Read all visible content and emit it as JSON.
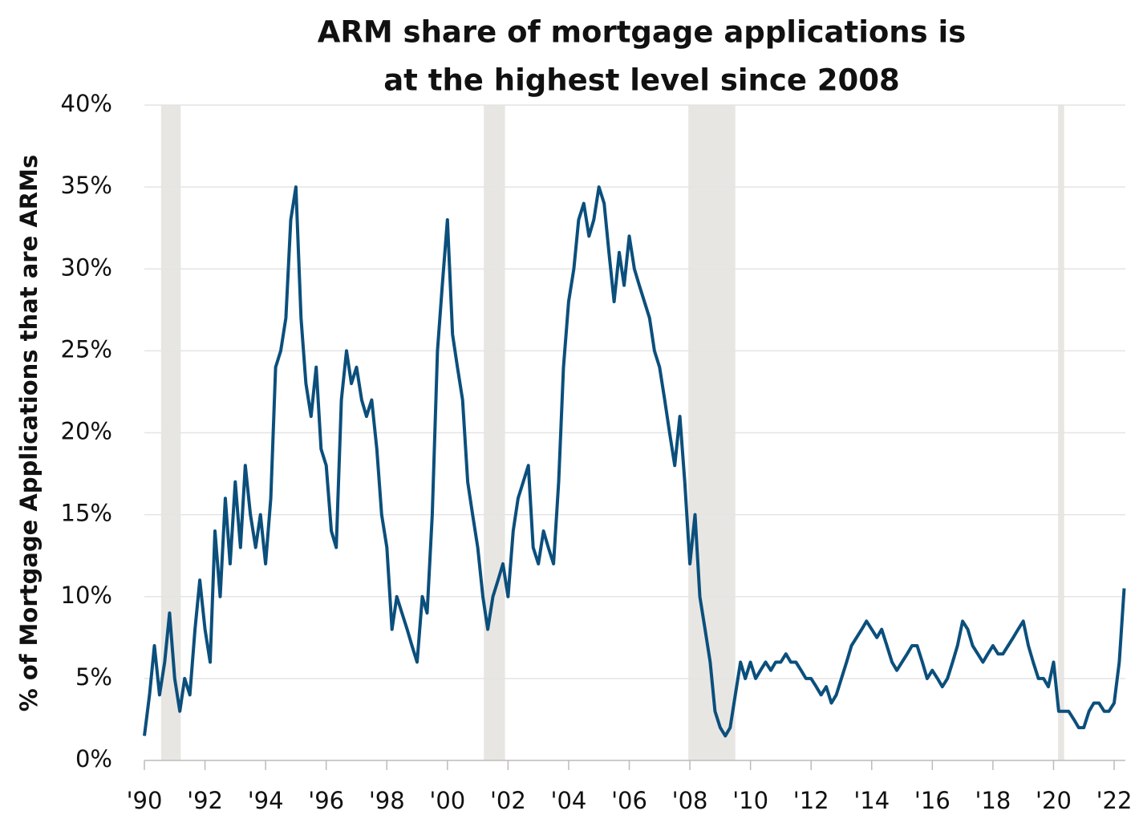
{
  "chart_data": {
    "type": "line",
    "title": [
      "ARM share of mortgage applications is",
      "at the highest level since 2008"
    ],
    "y_label": "% of Mortgage Applications that are ARMs",
    "xlim": [
      1990,
      2022.37
    ],
    "ylim": [
      0,
      40
    ],
    "xticks": [
      {
        "value": 1990,
        "label": "'90"
      },
      {
        "value": 1992,
        "label": "'92"
      },
      {
        "value": 1994,
        "label": "'94"
      },
      {
        "value": 1996,
        "label": "'96"
      },
      {
        "value": 1998,
        "label": "'98"
      },
      {
        "value": 2000,
        "label": "'00"
      },
      {
        "value": 2002,
        "label": "'02"
      },
      {
        "value": 2004,
        "label": "'04"
      },
      {
        "value": 2006,
        "label": "'06"
      },
      {
        "value": 2008,
        "label": "'08"
      },
      {
        "value": 2010,
        "label": "'10"
      },
      {
        "value": 2012,
        "label": "'12"
      },
      {
        "value": 2014,
        "label": "'14"
      },
      {
        "value": 2016,
        "label": "'16"
      },
      {
        "value": 2018,
        "label": "'18"
      },
      {
        "value": 2020,
        "label": "'20"
      },
      {
        "value": 2022,
        "label": "'22"
      }
    ],
    "yticks": [
      {
        "value": 0,
        "label": "0%"
      },
      {
        "value": 5,
        "label": "5%"
      },
      {
        "value": 10,
        "label": "10%"
      },
      {
        "value": 15,
        "label": "15%"
      },
      {
        "value": 20,
        "label": "20%"
      },
      {
        "value": 25,
        "label": "25%"
      },
      {
        "value": 30,
        "label": "30%"
      },
      {
        "value": 35,
        "label": "35%"
      },
      {
        "value": 40,
        "label": "40%"
      }
    ],
    "grid": true,
    "recessions": [
      [
        1990.55,
        1991.2
      ],
      [
        2001.2,
        2001.9
      ],
      [
        2007.95,
        2009.5
      ],
      [
        2020.15,
        2020.35
      ]
    ],
    "recession_color": "#e8e6e3",
    "series": [
      {
        "color": "#0b4f7c",
        "x": [
          1990,
          1990.17,
          1990.33,
          1990.5,
          1990.67,
          1990.83,
          1991,
          1991.17,
          1991.33,
          1991.5,
          1991.67,
          1991.83,
          1992,
          1992.17,
          1992.33,
          1992.5,
          1992.67,
          1992.83,
          1993,
          1993.17,
          1993.33,
          1993.5,
          1993.67,
          1993.83,
          1994,
          1994.17,
          1994.33,
          1994.5,
          1994.67,
          1994.83,
          1995,
          1995.17,
          1995.33,
          1995.5,
          1995.67,
          1995.83,
          1996,
          1996.17,
          1996.33,
          1996.5,
          1996.67,
          1996.83,
          1997,
          1997.17,
          1997.33,
          1997.5,
          1997.67,
          1997.83,
          1998,
          1998.17,
          1998.33,
          1998.5,
          1998.67,
          1998.83,
          1999,
          1999.17,
          1999.33,
          1999.5,
          1999.67,
          1999.83,
          2000,
          2000.17,
          2000.33,
          2000.5,
          2000.67,
          2000.83,
          2001,
          2001.17,
          2001.33,
          2001.5,
          2001.67,
          2001.83,
          2002,
          2002.17,
          2002.33,
          2002.5,
          2002.67,
          2002.83,
          2003,
          2003.17,
          2003.33,
          2003.5,
          2003.67,
          2003.83,
          2004,
          2004.17,
          2004.33,
          2004.5,
          2004.67,
          2004.83,
          2005,
          2005.17,
          2005.33,
          2005.5,
          2005.67,
          2005.83,
          2006,
          2006.17,
          2006.33,
          2006.5,
          2006.67,
          2006.83,
          2007,
          2007.17,
          2007.33,
          2007.5,
          2007.67,
          2007.83,
          2008,
          2008.17,
          2008.33,
          2008.5,
          2008.67,
          2008.83,
          2009,
          2009.17,
          2009.33,
          2009.5,
          2009.67,
          2009.83,
          2010,
          2010.17,
          2010.33,
          2010.5,
          2010.67,
          2010.83,
          2011,
          2011.17,
          2011.33,
          2011.5,
          2011.67,
          2011.83,
          2012,
          2012.17,
          2012.33,
          2012.5,
          2012.67,
          2012.83,
          2013,
          2013.17,
          2013.33,
          2013.5,
          2013.67,
          2013.83,
          2014,
          2014.17,
          2014.33,
          2014.5,
          2014.67,
          2014.83,
          2015,
          2015.17,
          2015.33,
          2015.5,
          2015.67,
          2015.83,
          2016,
          2016.17,
          2016.33,
          2016.5,
          2016.67,
          2016.83,
          2017,
          2017.17,
          2017.33,
          2017.5,
          2017.67,
          2017.83,
          2018,
          2018.17,
          2018.33,
          2018.5,
          2018.67,
          2018.83,
          2019,
          2019.17,
          2019.33,
          2019.5,
          2019.67,
          2019.83,
          2020,
          2020.17,
          2020.33,
          2020.5,
          2020.67,
          2020.83,
          2021,
          2021.17,
          2021.33,
          2021.5,
          2021.67,
          2021.83,
          2022,
          2022.17,
          2022.33
        ],
        "values": [
          1.5,
          4,
          7,
          4,
          6,
          9,
          5,
          3,
          5,
          4,
          8,
          11,
          8,
          6,
          14,
          10,
          16,
          12,
          17,
          13,
          18,
          15,
          13,
          15,
          12,
          16,
          24,
          25,
          27,
          33,
          35,
          27,
          23,
          21,
          24,
          19,
          18,
          14,
          13,
          22,
          25,
          23,
          24,
          22,
          21,
          22,
          19,
          15,
          13,
          8,
          10,
          9,
          8,
          7,
          6,
          10,
          9,
          15,
          25,
          29,
          33,
          26,
          24,
          22,
          17,
          15,
          13,
          10,
          8,
          10,
          11,
          12,
          10,
          14,
          16,
          17,
          18,
          13,
          12,
          14,
          13,
          12,
          17,
          24,
          28,
          30,
          33,
          34,
          32,
          33,
          35,
          34,
          31,
          28,
          31,
          29,
          32,
          30,
          29,
          28,
          27,
          25,
          24,
          22,
          20,
          18,
          21,
          17,
          12,
          15,
          10,
          8,
          6,
          3,
          2,
          1.5,
          2,
          4,
          6,
          5,
          6,
          5,
          5.5,
          6,
          5.5,
          6,
          6,
          6.5,
          6,
          6,
          5.5,
          5,
          5,
          4.5,
          4,
          4.5,
          3.5,
          4,
          5,
          6,
          7,
          7.5,
          8,
          8.5,
          8,
          7.5,
          8,
          7,
          6,
          5.5,
          6,
          6.5,
          7,
          7,
          6,
          5,
          5.5,
          5,
          4.5,
          5,
          6,
          7,
          8.5,
          8,
          7,
          6.5,
          6,
          6.5,
          7,
          6.5,
          6.5,
          7,
          7.5,
          8,
          8.5,
          7,
          6,
          5,
          5,
          4.5,
          6,
          3,
          3,
          3,
          2.5,
          2,
          2,
          3,
          3.5,
          3.5,
          3,
          3,
          3.5,
          6,
          10.5
        ]
      }
    ]
  }
}
